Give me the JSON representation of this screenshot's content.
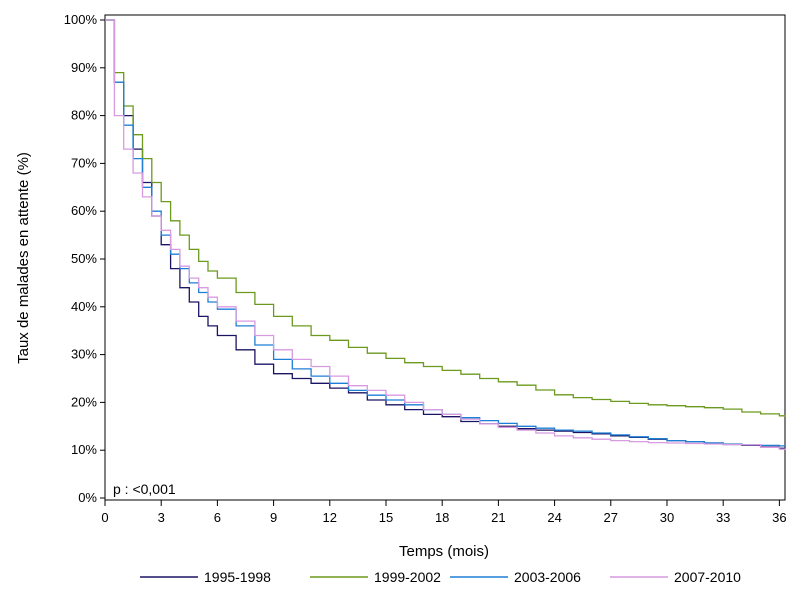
{
  "chart_data": {
    "type": "line",
    "xlabel": "Temps (mois)",
    "ylabel": "Taux de malades en attente (%)",
    "xlim": [
      0,
      36.3
    ],
    "ylim": [
      0,
      100
    ],
    "x_ticks": [
      "0",
      "3",
      "6",
      "9",
      "12",
      "15",
      "18",
      "21",
      "24",
      "27",
      "30",
      "33",
      "36"
    ],
    "y_ticks": [
      "0%",
      "10%",
      "20%",
      "30%",
      "40%",
      "50%",
      "60%",
      "70%",
      "80%",
      "90%",
      "100%"
    ],
    "annotation": "p : <0,001",
    "legend_position": "bottom",
    "series": [
      {
        "name": "1995-1998",
        "color": "#1b1464",
        "x": [
          0,
          0.5,
          1,
          1.5,
          2,
          2.5,
          3,
          3.5,
          4,
          4.5,
          5,
          5.5,
          6,
          7,
          8,
          9,
          10,
          11,
          12,
          13,
          14,
          15,
          16,
          17,
          18,
          19,
          20,
          21,
          22,
          23,
          24,
          25,
          26,
          27,
          28,
          29,
          30,
          31,
          32,
          33,
          34,
          35,
          36,
          36.3
        ],
        "y": [
          100,
          87,
          80,
          73,
          66,
          59,
          53,
          48,
          44,
          41,
          38,
          36,
          34,
          31,
          28,
          26,
          25,
          24,
          23,
          22,
          20.5,
          19.5,
          18.5,
          17.5,
          17,
          16,
          15.5,
          15,
          14.5,
          14.2,
          14,
          13.7,
          13.4,
          13,
          12.7,
          12.3,
          12,
          11.8,
          11.5,
          11.2,
          11,
          10.7,
          10.4,
          10.3
        ]
      },
      {
        "name": "1999-2002",
        "color": "#6b9a1f",
        "x": [
          0,
          0.5,
          1,
          1.5,
          2,
          2.5,
          3,
          3.5,
          4,
          4.5,
          5,
          5.5,
          6,
          7,
          8,
          9,
          10,
          11,
          12,
          13,
          14,
          15,
          16,
          17,
          18,
          19,
          20,
          21,
          22,
          23,
          24,
          25,
          26,
          27,
          28,
          29,
          30,
          31,
          32,
          33,
          34,
          35,
          36,
          36.3
        ],
        "y": [
          100,
          89,
          82,
          76,
          71,
          66,
          62,
          58,
          55,
          52,
          49.5,
          47.5,
          46,
          43,
          40.5,
          38,
          36,
          34,
          33,
          31.5,
          30.3,
          29.2,
          28.3,
          27.5,
          26.7,
          25.9,
          25,
          24.3,
          23.6,
          22.6,
          21.6,
          21,
          20.6,
          20.2,
          19.8,
          19.5,
          19.3,
          19.1,
          18.9,
          18.6,
          18,
          17.6,
          17.2,
          17
        ]
      },
      {
        "name": "2003-2006",
        "color": "#1e7fd6",
        "x": [
          0,
          0.5,
          1,
          1.5,
          2,
          2.5,
          3,
          3.5,
          4,
          4.5,
          5,
          5.5,
          6,
          7,
          8,
          9,
          10,
          11,
          12,
          13,
          14,
          15,
          16,
          17,
          18,
          19,
          20,
          21,
          22,
          23,
          24,
          25,
          26,
          27,
          28,
          29,
          30,
          31,
          32,
          33,
          34,
          35,
          36,
          36.3
        ],
        "y": [
          100,
          87,
          78,
          71,
          65,
          60,
          55,
          51,
          48,
          45,
          43,
          41,
          39.5,
          36,
          32,
          29,
          27,
          25.5,
          24,
          22.5,
          21.5,
          20.5,
          19.5,
          18.5,
          17.5,
          16.8,
          16.2,
          15.6,
          15,
          14.6,
          14.2,
          14,
          13.6,
          13.2,
          12.8,
          12.4,
          12,
          11.8,
          11.5,
          11.3,
          11.1,
          11,
          10.9,
          10.9
        ]
      },
      {
        "name": "2007-2010",
        "color": "#d89ae0",
        "x": [
          0,
          0.5,
          1,
          1.5,
          2,
          2.5,
          3,
          3.5,
          4,
          4.5,
          5,
          5.5,
          6,
          7,
          8,
          9,
          10,
          11,
          12,
          13,
          14,
          15,
          16,
          17,
          18,
          19,
          20,
          21,
          22,
          23,
          24,
          25,
          26,
          27,
          28,
          29,
          30,
          31,
          32,
          33,
          34,
          35,
          36,
          36.3
        ],
        "y": [
          100,
          80,
          73,
          68,
          63,
          59,
          56,
          52,
          48.5,
          46,
          44,
          42,
          40,
          37,
          34,
          31,
          29,
          27.5,
          25.5,
          23.5,
          22.5,
          21.5,
          20,
          18.5,
          17.5,
          16.5,
          15.5,
          14.8,
          14.2,
          13.6,
          13,
          12.6,
          12.3,
          12,
          11.8,
          11.6,
          11.5,
          11.4,
          11.3,
          11.2,
          11.1,
          10.6,
          10.2,
          10.1
        ]
      }
    ]
  }
}
